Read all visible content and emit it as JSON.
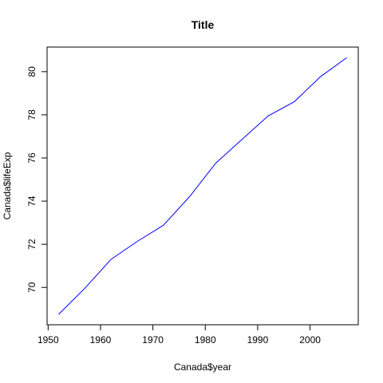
{
  "chart_data": {
    "type": "line",
    "title": "Title",
    "xlabel": "Canada$year",
    "ylabel": "Canada$lifeExp",
    "xlim": [
      1949.8,
      2009.2
    ],
    "ylim": [
      68.27,
      81.14
    ],
    "x_ticks": [
      1950,
      1960,
      1970,
      1980,
      1990,
      2000
    ],
    "y_ticks": [
      70,
      72,
      74,
      76,
      78,
      80
    ],
    "x": [
      1952,
      1957,
      1962,
      1967,
      1972,
      1977,
      1982,
      1987,
      1992,
      1997,
      2002,
      2007
    ],
    "series": [
      {
        "values": [
          68.75,
          69.96,
          71.3,
          72.13,
          72.88,
          74.21,
          75.76,
          76.86,
          77.95,
          78.61,
          79.77,
          80.65
        ],
        "color": "#0000ff"
      }
    ],
    "grid": false,
    "legend": "none"
  }
}
